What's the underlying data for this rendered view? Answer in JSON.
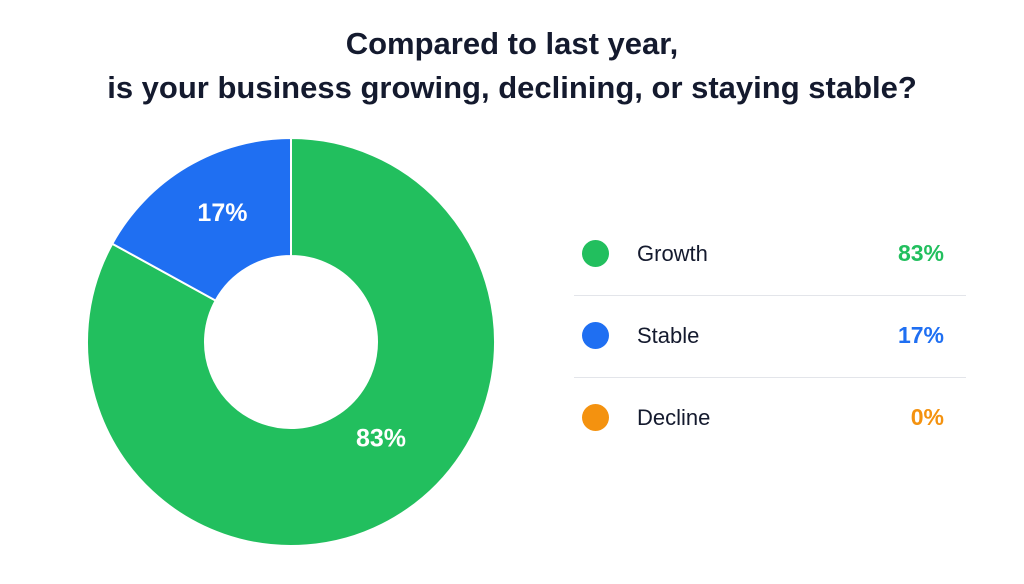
{
  "chart_data": {
    "type": "pie",
    "title_lines": [
      "Compared to last year,",
      "is your business growing, declining, or staying stable?"
    ],
    "series": [
      {
        "name": "Growth",
        "value": 83,
        "label": "83%",
        "color": "#22bf5e"
      },
      {
        "name": "Stable",
        "value": 17,
        "label": "17%",
        "color": "#1f6ff2"
      },
      {
        "name": "Decline",
        "value": 0,
        "label": "0%",
        "color": "#f4920f"
      }
    ],
    "legend_placement": "right",
    "donut": true
  }
}
